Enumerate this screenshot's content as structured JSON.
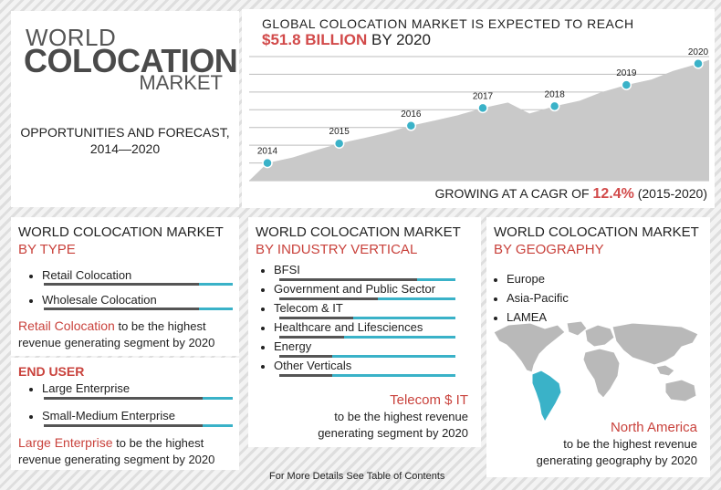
{
  "title": {
    "line1": "WORLD",
    "line2": "COLOCATION",
    "line3": "MARKET",
    "subtitle_line1": "OPPORTUNITIES AND FORECAST,",
    "subtitle_line2": "2014—2020"
  },
  "chart": {
    "heading_line1": "GLOBAL COLOCATION MARKET IS EXPECTED TO REACH",
    "amount": "$51.8 BILLION",
    "by": " BY 2020",
    "footer_prefix": "GROWING AT A CAGR OF ",
    "cagr": "12.4%",
    "footer_suffix": " (2015-2020)",
    "colors": {
      "area": "#c9c9c9",
      "marker": "#3ab2c8",
      "grid": "#bdbdbd"
    }
  },
  "chart_data": {
    "type": "area",
    "title": "GLOBAL COLOCATION MARKET IS EXPECTED TO REACH $51.8 BILLION BY 2020",
    "x_labels": [
      "2014",
      "2015",
      "2016",
      "2017",
      "2018",
      "2019",
      "2020"
    ],
    "values": [
      10,
      21,
      31,
      41,
      42,
      54,
      66
    ],
    "grid": true
  },
  "by_type": {
    "title": "WORLD COLOCATION MARKET",
    "subtitle": "BY TYPE",
    "items": [
      {
        "label": "Retail Colocation",
        "share": 0.82
      },
      {
        "label": "Wholesale Colocation",
        "share": 0.82
      }
    ],
    "highlight": "Retail Colocation",
    "note_rest": " to be the highest",
    "note_line2": "revenue generating segment by 2020"
  },
  "end_user": {
    "title": "END USER",
    "items": [
      {
        "label": "Large Enterprise",
        "share": 0.84
      },
      {
        "label": "Small-Medium Enterprise",
        "share": 0.84
      }
    ],
    "highlight": "Large Enterprise",
    "note_rest": " to be the highest",
    "note_line2": "revenue generating segment by 2020"
  },
  "industry": {
    "title": "WORLD COLOCATION MARKET",
    "subtitle": "BY INDUSTRY VERTICAL",
    "items": [
      {
        "label": "BFSI",
        "share": 0.78
      },
      {
        "label": "Government and Public Sector",
        "share": 0.56
      },
      {
        "label": "Telecom & IT",
        "share": 0.42
      },
      {
        "label": "Healthcare and Lifesciences",
        "share": 0.37
      },
      {
        "label": "Energy",
        "share": 0.3
      },
      {
        "label": "Other Verticals",
        "share": 0.3
      }
    ],
    "highlight": "Telecom $ IT",
    "note_line1": "to be the highest revenue",
    "note_line2": "generating segment by 2020"
  },
  "geography": {
    "title": "WORLD COLOCATION MARKET",
    "subtitle": "BY GEOGRAPHY",
    "items": [
      "Europe",
      "Asia-Pacific",
      "LAMEA"
    ],
    "highlight": "North America",
    "note_line1": "to be the highest revenue",
    "note_line2": "generating geography by 2020",
    "colors": {
      "land": "#b9b9b9",
      "highlight": "#3ab2c8"
    }
  },
  "footer": {
    "text": "For More Details See Table of Contents"
  }
}
